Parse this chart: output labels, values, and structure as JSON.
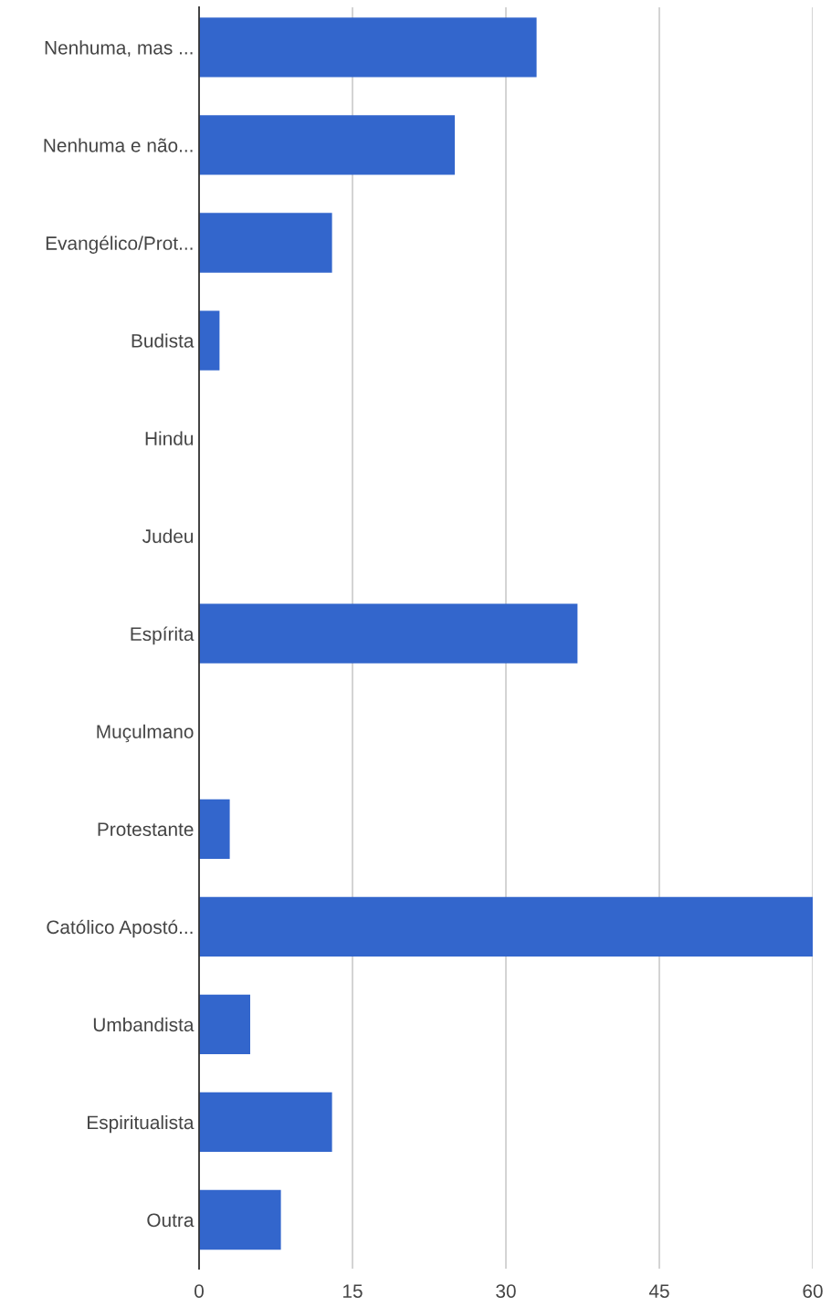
{
  "chart_data": {
    "type": "bar",
    "orientation": "horizontal",
    "categories": [
      "Nenhuma, mas ...",
      "Nenhuma e não...",
      "Evangélico/Prot...",
      "Budista",
      "Hindu",
      "Judeu",
      "Espírita",
      "Muçulmano",
      "Protestante",
      "Católico Apostó...",
      "Umbandista",
      "Espiritualista",
      "Outra"
    ],
    "values": [
      33,
      25,
      13,
      2,
      0,
      0,
      37,
      0,
      3,
      60,
      5,
      13,
      8
    ],
    "color": "#3366cc",
    "xlim": [
      0,
      60
    ],
    "xticks": [
      0,
      15,
      30,
      45,
      60
    ],
    "grid": "x",
    "legend": false
  }
}
